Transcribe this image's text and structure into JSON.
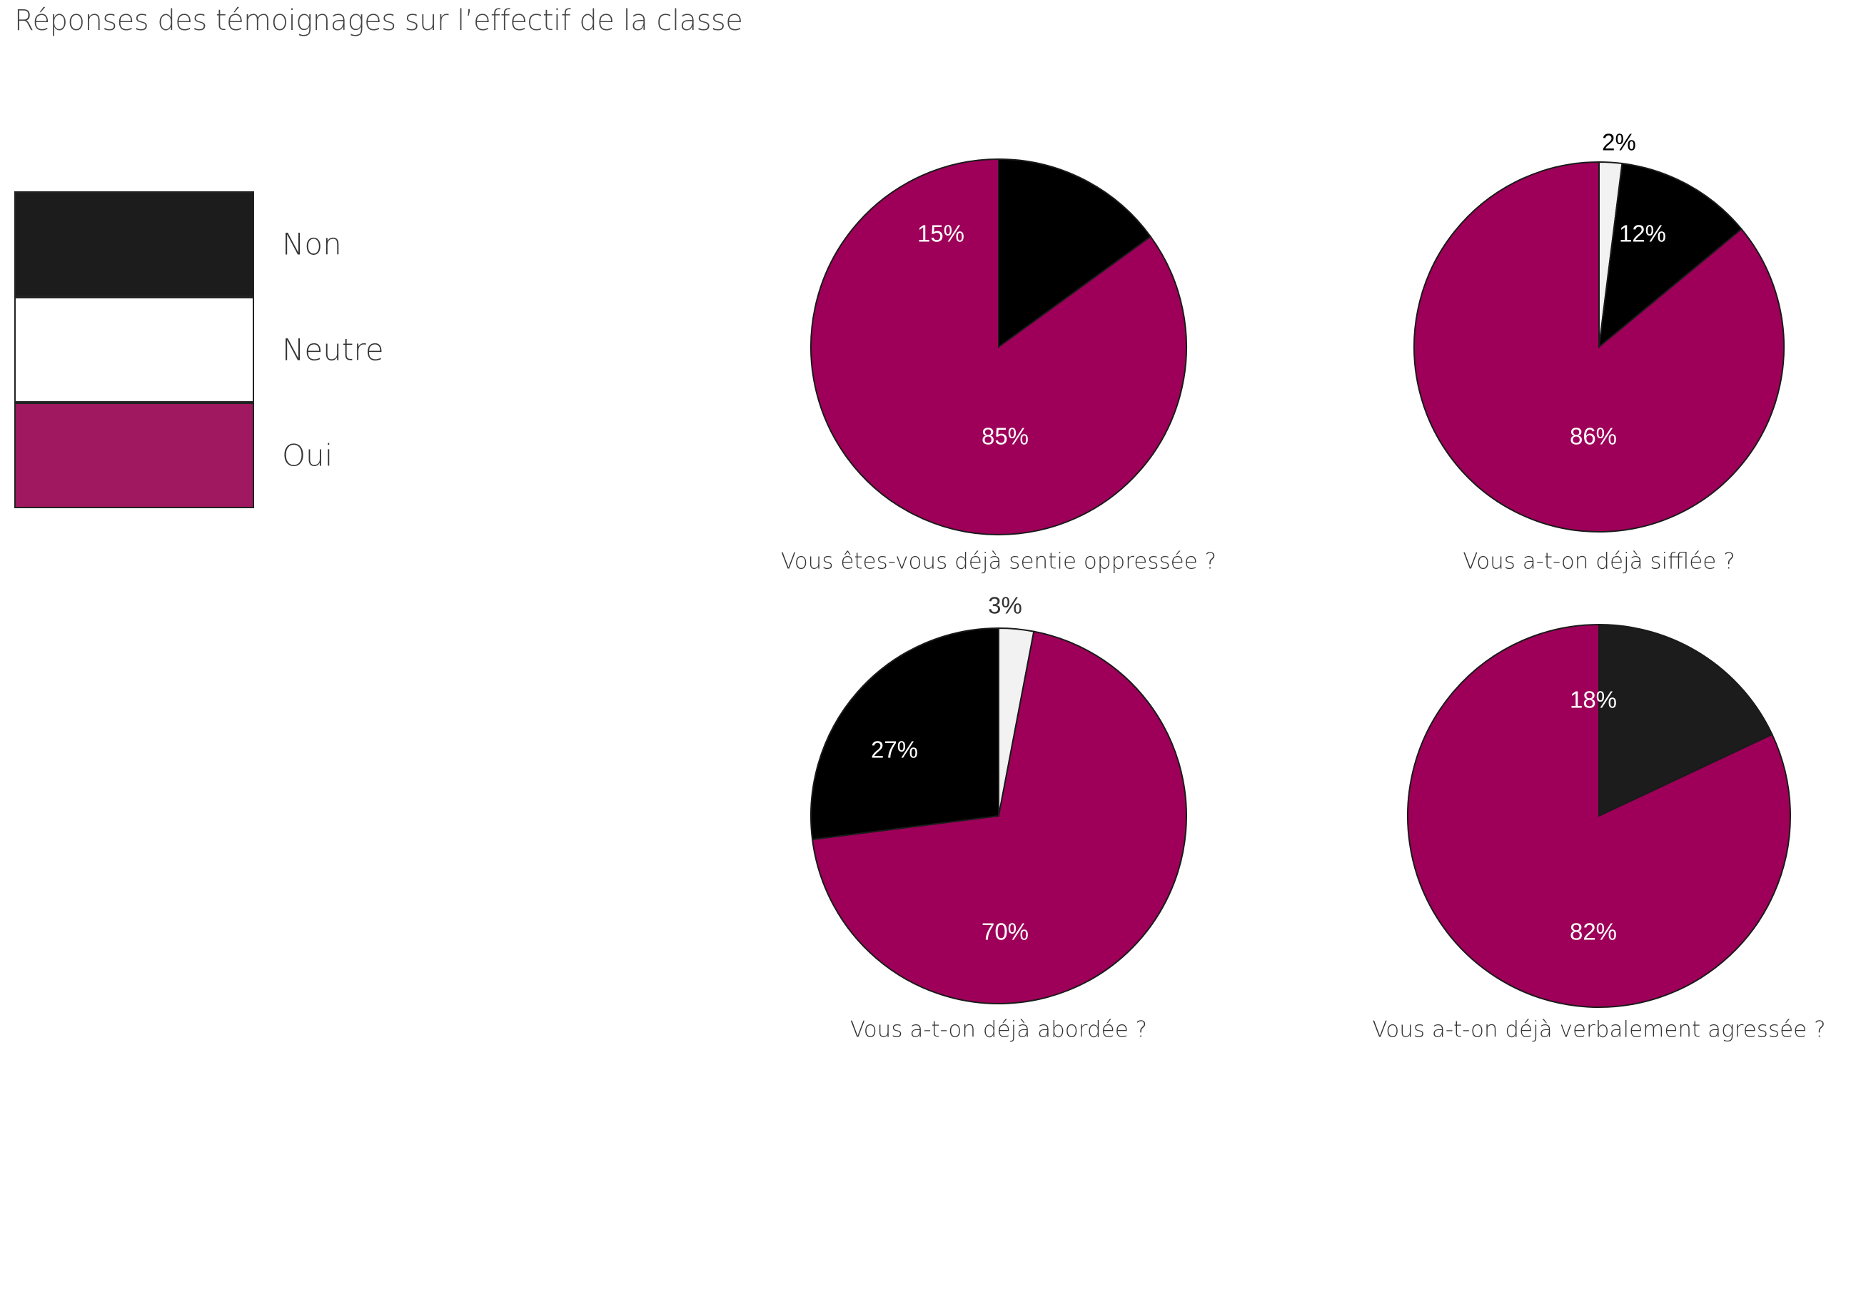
{
  "title": "Réponses des témoignages sur l’effectif de la classe",
  "legend": {
    "items": [
      {
        "label": "Non",
        "color": "#1c1c1c"
      },
      {
        "label": "Neutre",
        "color": "#ffffff"
      },
      {
        "label": "Oui",
        "color": "#a0185f"
      }
    ]
  },
  "colors": {
    "non": "#000000",
    "neutre": "#f2f2f2",
    "oui": "#9e0059"
  },
  "chart_data": [
    {
      "type": "pie",
      "title": "Vous êtes-vous déjà sentie oppressée ?",
      "series": [
        {
          "name": "Non",
          "value": 15,
          "label": "15%",
          "color": "#000000",
          "label_color": "#ffffff"
        },
        {
          "name": "Oui",
          "value": 85,
          "label": "85%",
          "color": "#9e0059",
          "label_color": "#ffffff"
        }
      ]
    },
    {
      "type": "pie",
      "title": "Vous a-t-on déjà sifflée ?",
      "series": [
        {
          "name": "Neutre",
          "value": 2,
          "label": "2%",
          "color": "#f2f2f2",
          "label_color": "#000000"
        },
        {
          "name": "Non",
          "value": 12,
          "label": "12%",
          "color": "#000000",
          "label_color": "#ffffff"
        },
        {
          "name": "Oui",
          "value": 86,
          "label": "86%",
          "color": "#9e0059",
          "label_color": "#ffffff"
        }
      ]
    },
    {
      "type": "pie",
      "title": "Vous a-t-on déjà abordée ?",
      "series": [
        {
          "name": "Neutre",
          "value": 3,
          "label": "3%",
          "color": "#f2f2f2",
          "label_color": "#333333"
        },
        {
          "name": "Oui",
          "value": 70,
          "label": "70%",
          "color": "#9e0059",
          "label_color": "#ffffff"
        },
        {
          "name": "Non",
          "value": 27,
          "label": "27%",
          "color": "#000000",
          "label_color": "#ffffff"
        }
      ]
    },
    {
      "type": "pie",
      "title": "Vous a-t-on déjà verbalement agressée ?",
      "series": [
        {
          "name": "Non",
          "value": 18,
          "label": "18%",
          "color": "#1c1c1c",
          "label_color": "#ffffff"
        },
        {
          "name": "Oui",
          "value": 82,
          "label": "82%",
          "color": "#9e0059",
          "label_color": "#ffffff"
        }
      ]
    }
  ]
}
